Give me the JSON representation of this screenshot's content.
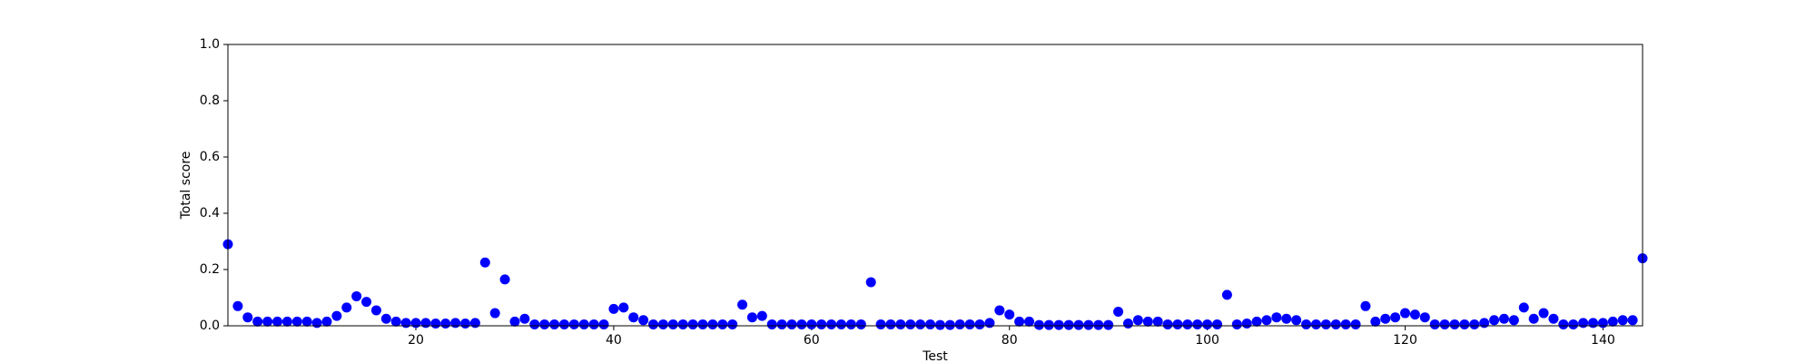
{
  "chart_data": {
    "type": "scatter",
    "xlabel": "Test",
    "ylabel": "Total score",
    "color": "#0000ff",
    "xlim": [
      1,
      144
    ],
    "ylim": [
      0,
      1
    ],
    "xticks": [
      20,
      40,
      60,
      80,
      100,
      120,
      140
    ],
    "yticks": [
      {
        "value": 0,
        "label": "0.0"
      },
      {
        "value": 0.2,
        "label": "0.2"
      },
      {
        "value": 0.4,
        "label": "0.4"
      },
      {
        "value": 0.6,
        "label": "0.6"
      },
      {
        "value": 0.8,
        "label": "0.8"
      },
      {
        "value": 1,
        "label": "1.0"
      }
    ],
    "x": [
      1,
      2,
      3,
      4,
      5,
      6,
      7,
      8,
      9,
      10,
      11,
      12,
      13,
      14,
      15,
      16,
      17,
      18,
      19,
      20,
      21,
      22,
      23,
      24,
      25,
      26,
      27,
      28,
      29,
      30,
      31,
      32,
      33,
      34,
      35,
      36,
      37,
      38,
      39,
      40,
      41,
      42,
      43,
      44,
      45,
      46,
      47,
      48,
      49,
      50,
      51,
      52,
      53,
      54,
      55,
      56,
      57,
      58,
      59,
      60,
      61,
      62,
      63,
      64,
      65,
      66,
      67,
      68,
      69,
      70,
      71,
      72,
      73,
      74,
      75,
      76,
      77,
      78,
      79,
      80,
      81,
      82,
      83,
      84,
      85,
      86,
      87,
      88,
      89,
      90,
      91,
      92,
      93,
      94,
      95,
      96,
      97,
      98,
      99,
      100,
      101,
      102,
      103,
      104,
      105,
      106,
      107,
      108,
      109,
      110,
      111,
      112,
      113,
      114,
      115,
      116,
      117,
      118,
      119,
      120,
      121,
      122,
      123,
      124,
      125,
      126,
      127,
      128,
      129,
      130,
      131,
      132,
      133,
      134,
      135,
      136,
      137,
      138,
      139,
      140,
      141,
      142,
      143,
      144
    ],
    "values": [
      0.29,
      0.07,
      0.03,
      0.015,
      0.015,
      0.015,
      0.015,
      0.015,
      0.015,
      0.01,
      0.015,
      0.035,
      0.065,
      0.105,
      0.085,
      0.055,
      0.025,
      0.015,
      0.01,
      0.01,
      0.01,
      0.008,
      0.008,
      0.01,
      0.008,
      0.01,
      0.225,
      0.045,
      0.165,
      0.015,
      0.025,
      0.005,
      0.005,
      0.005,
      0.005,
      0.005,
      0.005,
      0.005,
      0.005,
      0.06,
      0.065,
      0.03,
      0.02,
      0.005,
      0.005,
      0.005,
      0.005,
      0.005,
      0.005,
      0.005,
      0.005,
      0.005,
      0.075,
      0.03,
      0.035,
      0.005,
      0.005,
      0.005,
      0.005,
      0.005,
      0.005,
      0.005,
      0.005,
      0.005,
      0.005,
      0.155,
      0.005,
      0.005,
      0.005,
      0.005,
      0.005,
      0.005,
      0.003,
      0.003,
      0.005,
      0.005,
      0.005,
      0.01,
      0.055,
      0.04,
      0.015,
      0.015,
      0.003,
      0.003,
      0.003,
      0.003,
      0.003,
      0.003,
      0.003,
      0.003,
      0.05,
      0.008,
      0.02,
      0.015,
      0.015,
      0.005,
      0.005,
      0.005,
      0.005,
      0.005,
      0.005,
      0.11,
      0.005,
      0.008,
      0.015,
      0.02,
      0.03,
      0.025,
      0.02,
      0.005,
      0.005,
      0.005,
      0.005,
      0.005,
      0.005,
      0.07,
      0.015,
      0.025,
      0.03,
      0.045,
      0.04,
      0.03,
      0.005,
      0.005,
      0.005,
      0.005,
      0.005,
      0.01,
      0.02,
      0.025,
      0.02,
      0.065,
      0.025,
      0.045,
      0.025,
      0.005,
      0.005,
      0.01,
      0.01,
      0.01,
      0.015,
      0.02,
      0.02,
      0.24
    ]
  }
}
